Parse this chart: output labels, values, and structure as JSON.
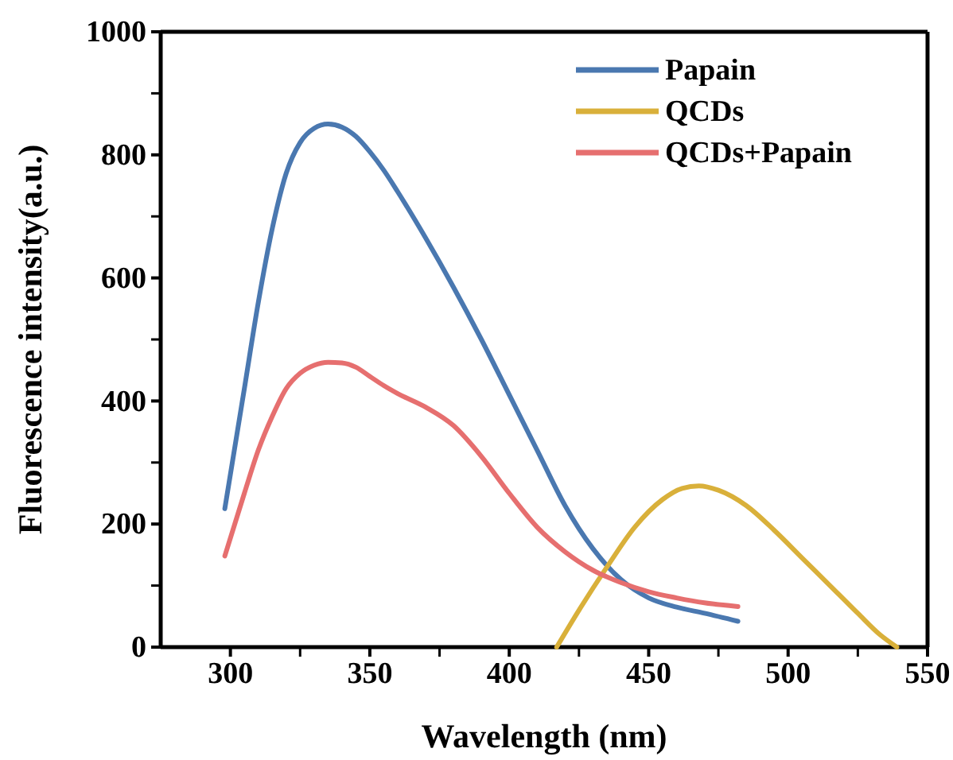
{
  "chart_data": {
    "type": "line",
    "xlabel": "Wavelength (nm)",
    "ylabel": "Fluorescence intensity(a.u.)",
    "xlim": [
      275,
      550
    ],
    "xticks": [
      300,
      {
        "value": 325,
        "label": null
      },
      350,
      {
        "value": 375,
        "label": null
      },
      400,
      {
        "value": 425,
        "label": null
      },
      450,
      {
        "value": 475,
        "label": null
      },
      500,
      {
        "value": 525,
        "label": null
      },
      550
    ],
    "ylim": [
      0,
      1000
    ],
    "yticks": [
      0,
      {
        "value": 100,
        "label": null
      },
      200,
      {
        "value": 300,
        "label": null
      },
      400,
      {
        "value": 500,
        "label": null
      },
      600,
      {
        "value": 700,
        "label": null
      },
      800,
      {
        "value": 900,
        "label": null
      },
      1000
    ],
    "legend": "top right",
    "grid": false,
    "marker": "none",
    "line_style": "solid",
    "series": [
      {
        "name": "Papain",
        "color": "#4a78b0",
        "x": [
          298,
          305,
          310,
          315,
          320,
          325,
          330,
          335,
          340,
          345,
          350,
          355,
          360,
          370,
          380,
          390,
          400,
          410,
          420,
          430,
          440,
          450,
          460,
          470,
          482
        ],
        "values": [
          225,
          420,
          560,
          680,
          770,
          820,
          843,
          850,
          845,
          830,
          805,
          775,
          740,
          665,
          585,
          500,
          410,
          320,
          230,
          160,
          110,
          80,
          65,
          55,
          42
        ]
      },
      {
        "name": "QCDs",
        "color": "#d9b03a",
        "x": [
          417,
          425,
          435,
          445,
          455,
          462,
          468,
          475,
          485,
          495,
          505,
          515,
          525,
          533,
          539
        ],
        "values": [
          0,
          60,
          130,
          195,
          240,
          258,
          262,
          255,
          230,
          190,
          145,
          100,
          55,
          20,
          0
        ]
      },
      {
        "name": "QCDs+Papain",
        "color": "#e66f6f",
        "x": [
          298,
          305,
          310,
          315,
          320,
          325,
          330,
          335,
          340,
          345,
          350,
          355,
          360,
          370,
          380,
          390,
          400,
          410,
          420,
          430,
          440,
          450,
          460,
          470,
          482
        ],
        "values": [
          148,
          250,
          320,
          375,
          420,
          445,
          458,
          463,
          462,
          455,
          440,
          425,
          412,
          390,
          360,
          310,
          250,
          195,
          155,
          125,
          105,
          90,
          80,
          72,
          66
        ]
      }
    ]
  }
}
